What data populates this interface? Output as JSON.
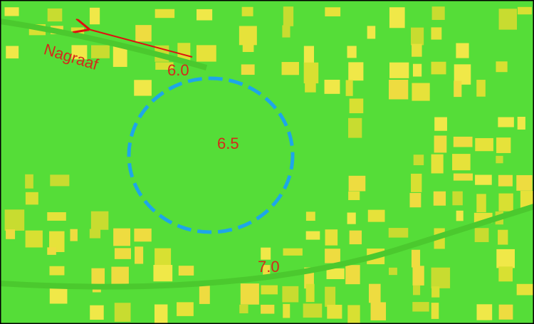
{
  "labels": {
    "direction": "Nagraaf",
    "elevations": [
      "6.0",
      "6.5",
      "7.0"
    ]
  }
}
